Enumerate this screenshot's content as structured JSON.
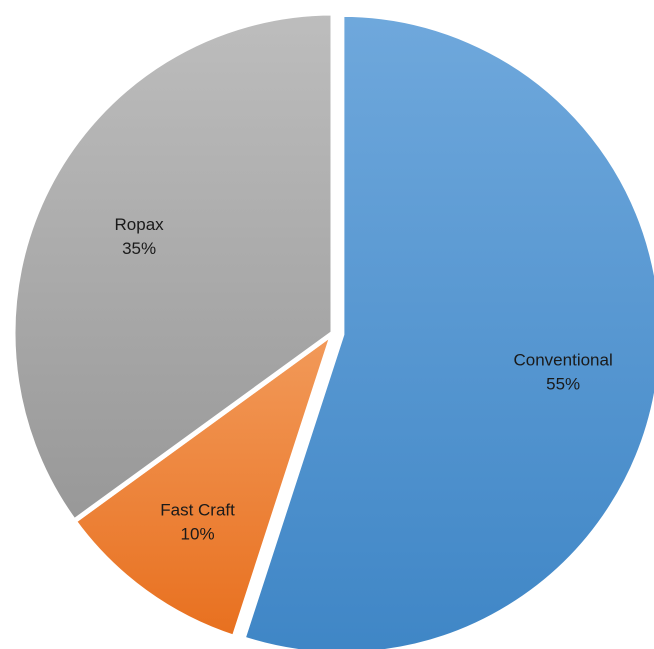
{
  "chart_data": {
    "type": "pie",
    "title": "",
    "slices": [
      {
        "label": "Conventional",
        "value": 55,
        "percent_label": "55%",
        "color": "#5B9BD5"
      },
      {
        "label": "Fast Craft",
        "value": 10,
        "percent_label": "10%",
        "color": "#ED7D31"
      },
      {
        "label": "Ropax",
        "value": 35,
        "percent_label": "35%",
        "color": "#A5A5A5"
      }
    ],
    "start_angle_deg": 0,
    "direction": "clockwise",
    "exploded_slice": "Conventional",
    "data_labels": "inside"
  }
}
